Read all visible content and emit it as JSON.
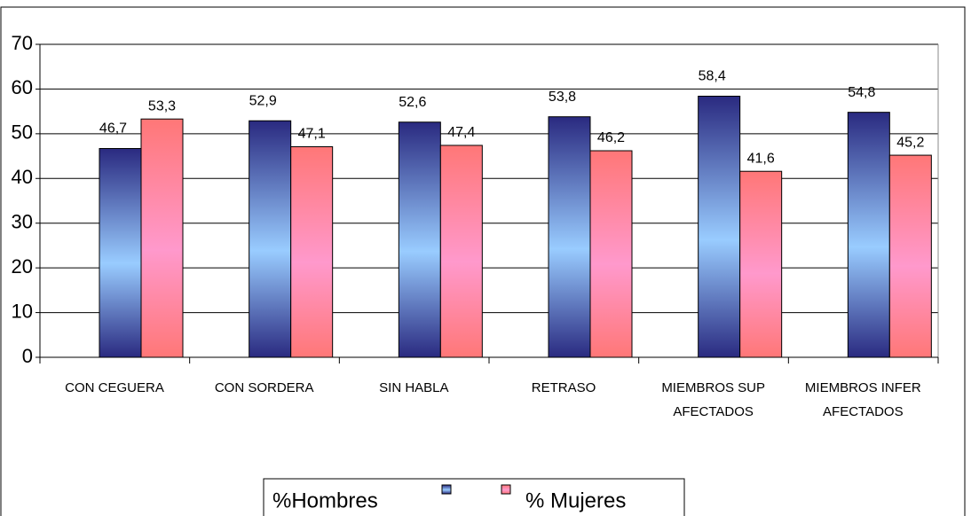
{
  "chart_data": {
    "type": "bar",
    "categories": [
      "CON CEGUERA",
      "CON SORDERA",
      "SIN HABLA",
      "RETRASO",
      "MIEMBROS SUP AFECTADOS",
      "MIEMBROS INFER AFECTADOS"
    ],
    "series": [
      {
        "name": "%Hombres",
        "color": "#99ccff",
        "values": [
          46.7,
          52.9,
          52.6,
          53.8,
          58.4,
          54.8
        ],
        "value_labels": [
          "46,7",
          "52,9",
          "52,6",
          "53,8",
          "58,4",
          "54,8"
        ]
      },
      {
        "name": "% Mujeres",
        "color": "#ff99cc",
        "values": [
          53.3,
          47.1,
          47.4,
          46.2,
          41.6,
          45.2
        ],
        "value_labels": [
          "53,3",
          "47,1",
          "47,4",
          "46,2",
          "41,6",
          "45,2"
        ]
      }
    ],
    "ylim": [
      0,
      70
    ],
    "yticks": [
      0,
      10,
      20,
      30,
      40,
      50,
      60,
      70
    ],
    "grid": true
  }
}
